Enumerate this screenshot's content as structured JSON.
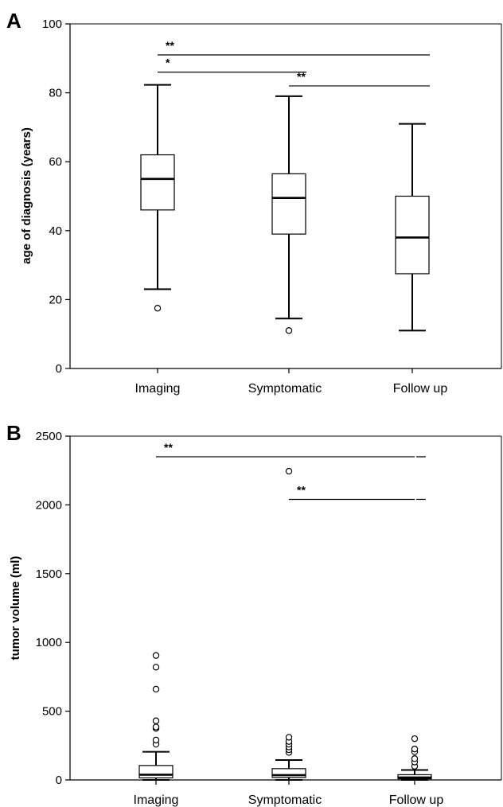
{
  "chart_data": [
    {
      "panel": "A",
      "type": "boxplot",
      "ylabel": "age of diagnosis (years)",
      "ylim": [
        0,
        100
      ],
      "yticks": [
        0,
        20,
        40,
        60,
        80,
        100
      ],
      "categories": [
        "Imaging",
        "Symptomatic",
        "Follow up"
      ],
      "boxes": [
        {
          "category": "Imaging",
          "whisker_low": 23,
          "q1": 46,
          "median": 55,
          "q3": 62,
          "whisker_high": 82.3,
          "outliers": [
            17.5
          ]
        },
        {
          "category": "Symptomatic",
          "whisker_low": 14.5,
          "q1": 39,
          "median": 49.5,
          "q3": 56.5,
          "whisker_high": 79,
          "outliers": [
            11
          ]
        },
        {
          "category": "Follow up",
          "whisker_low": 11,
          "q1": 27.5,
          "median": 38,
          "q3": 50,
          "whisker_high": 71,
          "outliers": []
        }
      ],
      "significance": [
        {
          "from": "Imaging",
          "to": "Follow up",
          "label": "**",
          "y": 91
        },
        {
          "from": "Imaging",
          "to": "Symptomatic",
          "label": "*",
          "y": 86
        },
        {
          "from": "Symptomatic",
          "to": "Follow up",
          "label": "**",
          "y": 82
        }
      ],
      "grid": false
    },
    {
      "panel": "B",
      "type": "boxplot",
      "ylabel": "tumor volume (ml)",
      "ylim": [
        0,
        2500
      ],
      "yticks": [
        0,
        500,
        1000,
        1500,
        2000,
        2500
      ],
      "categories": [
        "Imaging",
        "Symptomatic",
        "Follow up"
      ],
      "boxes": [
        {
          "category": "Imaging",
          "whisker_low": 0,
          "q1": 15,
          "median": 38,
          "q3": 105,
          "whisker_high": 205,
          "outliers": [
            260,
            290,
            375,
            385,
            430,
            660,
            820,
            905
          ]
        },
        {
          "category": "Symptomatic",
          "whisker_low": 0,
          "q1": 18,
          "median": 35,
          "q3": 82,
          "whisker_high": 145,
          "outliers": [
            200,
            220,
            240,
            260,
            280,
            310,
            2245
          ]
        },
        {
          "category": "Follow up",
          "whisker_low": 0,
          "q1": 8,
          "median": 18,
          "q3": 38,
          "whisker_high": 72,
          "outliers": [
            100,
            130,
            155,
            205,
            225,
            300
          ]
        }
      ],
      "significance": [
        {
          "from": "Imaging",
          "to": "Follow up",
          "label": "**",
          "y": 2350
        },
        {
          "from": "Symptomatic",
          "to": "Follow up",
          "label": "**",
          "y": 2040
        }
      ],
      "grid": false
    }
  ]
}
